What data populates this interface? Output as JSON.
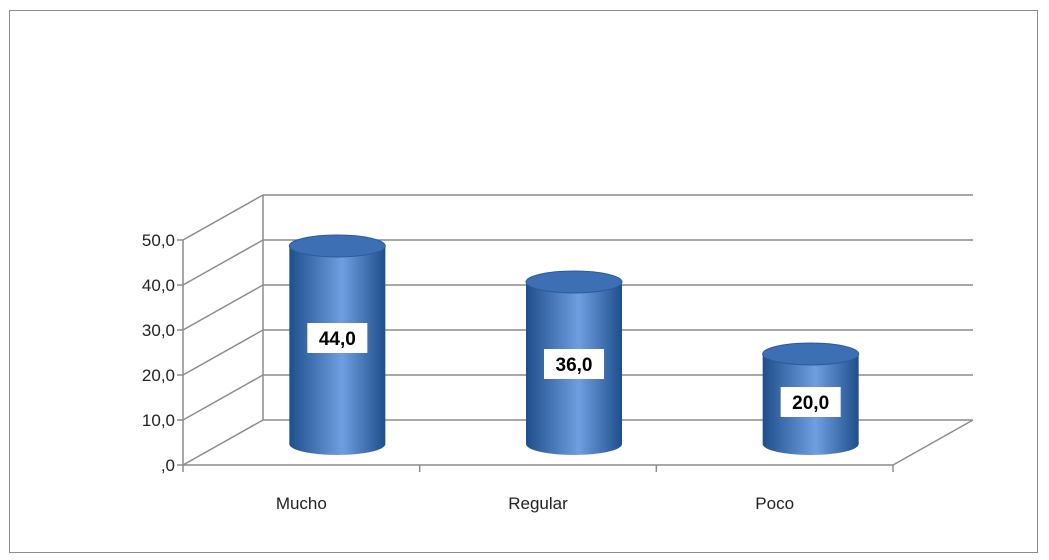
{
  "chart_data": {
    "type": "bar",
    "style": "3d-cylinder",
    "categories": [
      "Mucho",
      "Regular",
      "Poco"
    ],
    "values": [
      44.0,
      36.0,
      20.0
    ],
    "value_labels": [
      "44,0",
      "36,0",
      "20,0"
    ],
    "title": "",
    "xlabel": "",
    "ylabel": "",
    "ylim": [
      0,
      50
    ],
    "yticks": [
      0,
      10,
      20,
      30,
      40,
      50
    ],
    "ytick_labels": [
      ",0",
      "10,0",
      "20,0",
      "30,0",
      "40,0",
      "50,0"
    ],
    "grid": true,
    "legend": false,
    "colors": {
      "bar_dark": "#1f4e8c",
      "bar_light": "#6f9fe0",
      "bar_top": "#3c6fb4",
      "grid": "#8c8c8c"
    }
  }
}
